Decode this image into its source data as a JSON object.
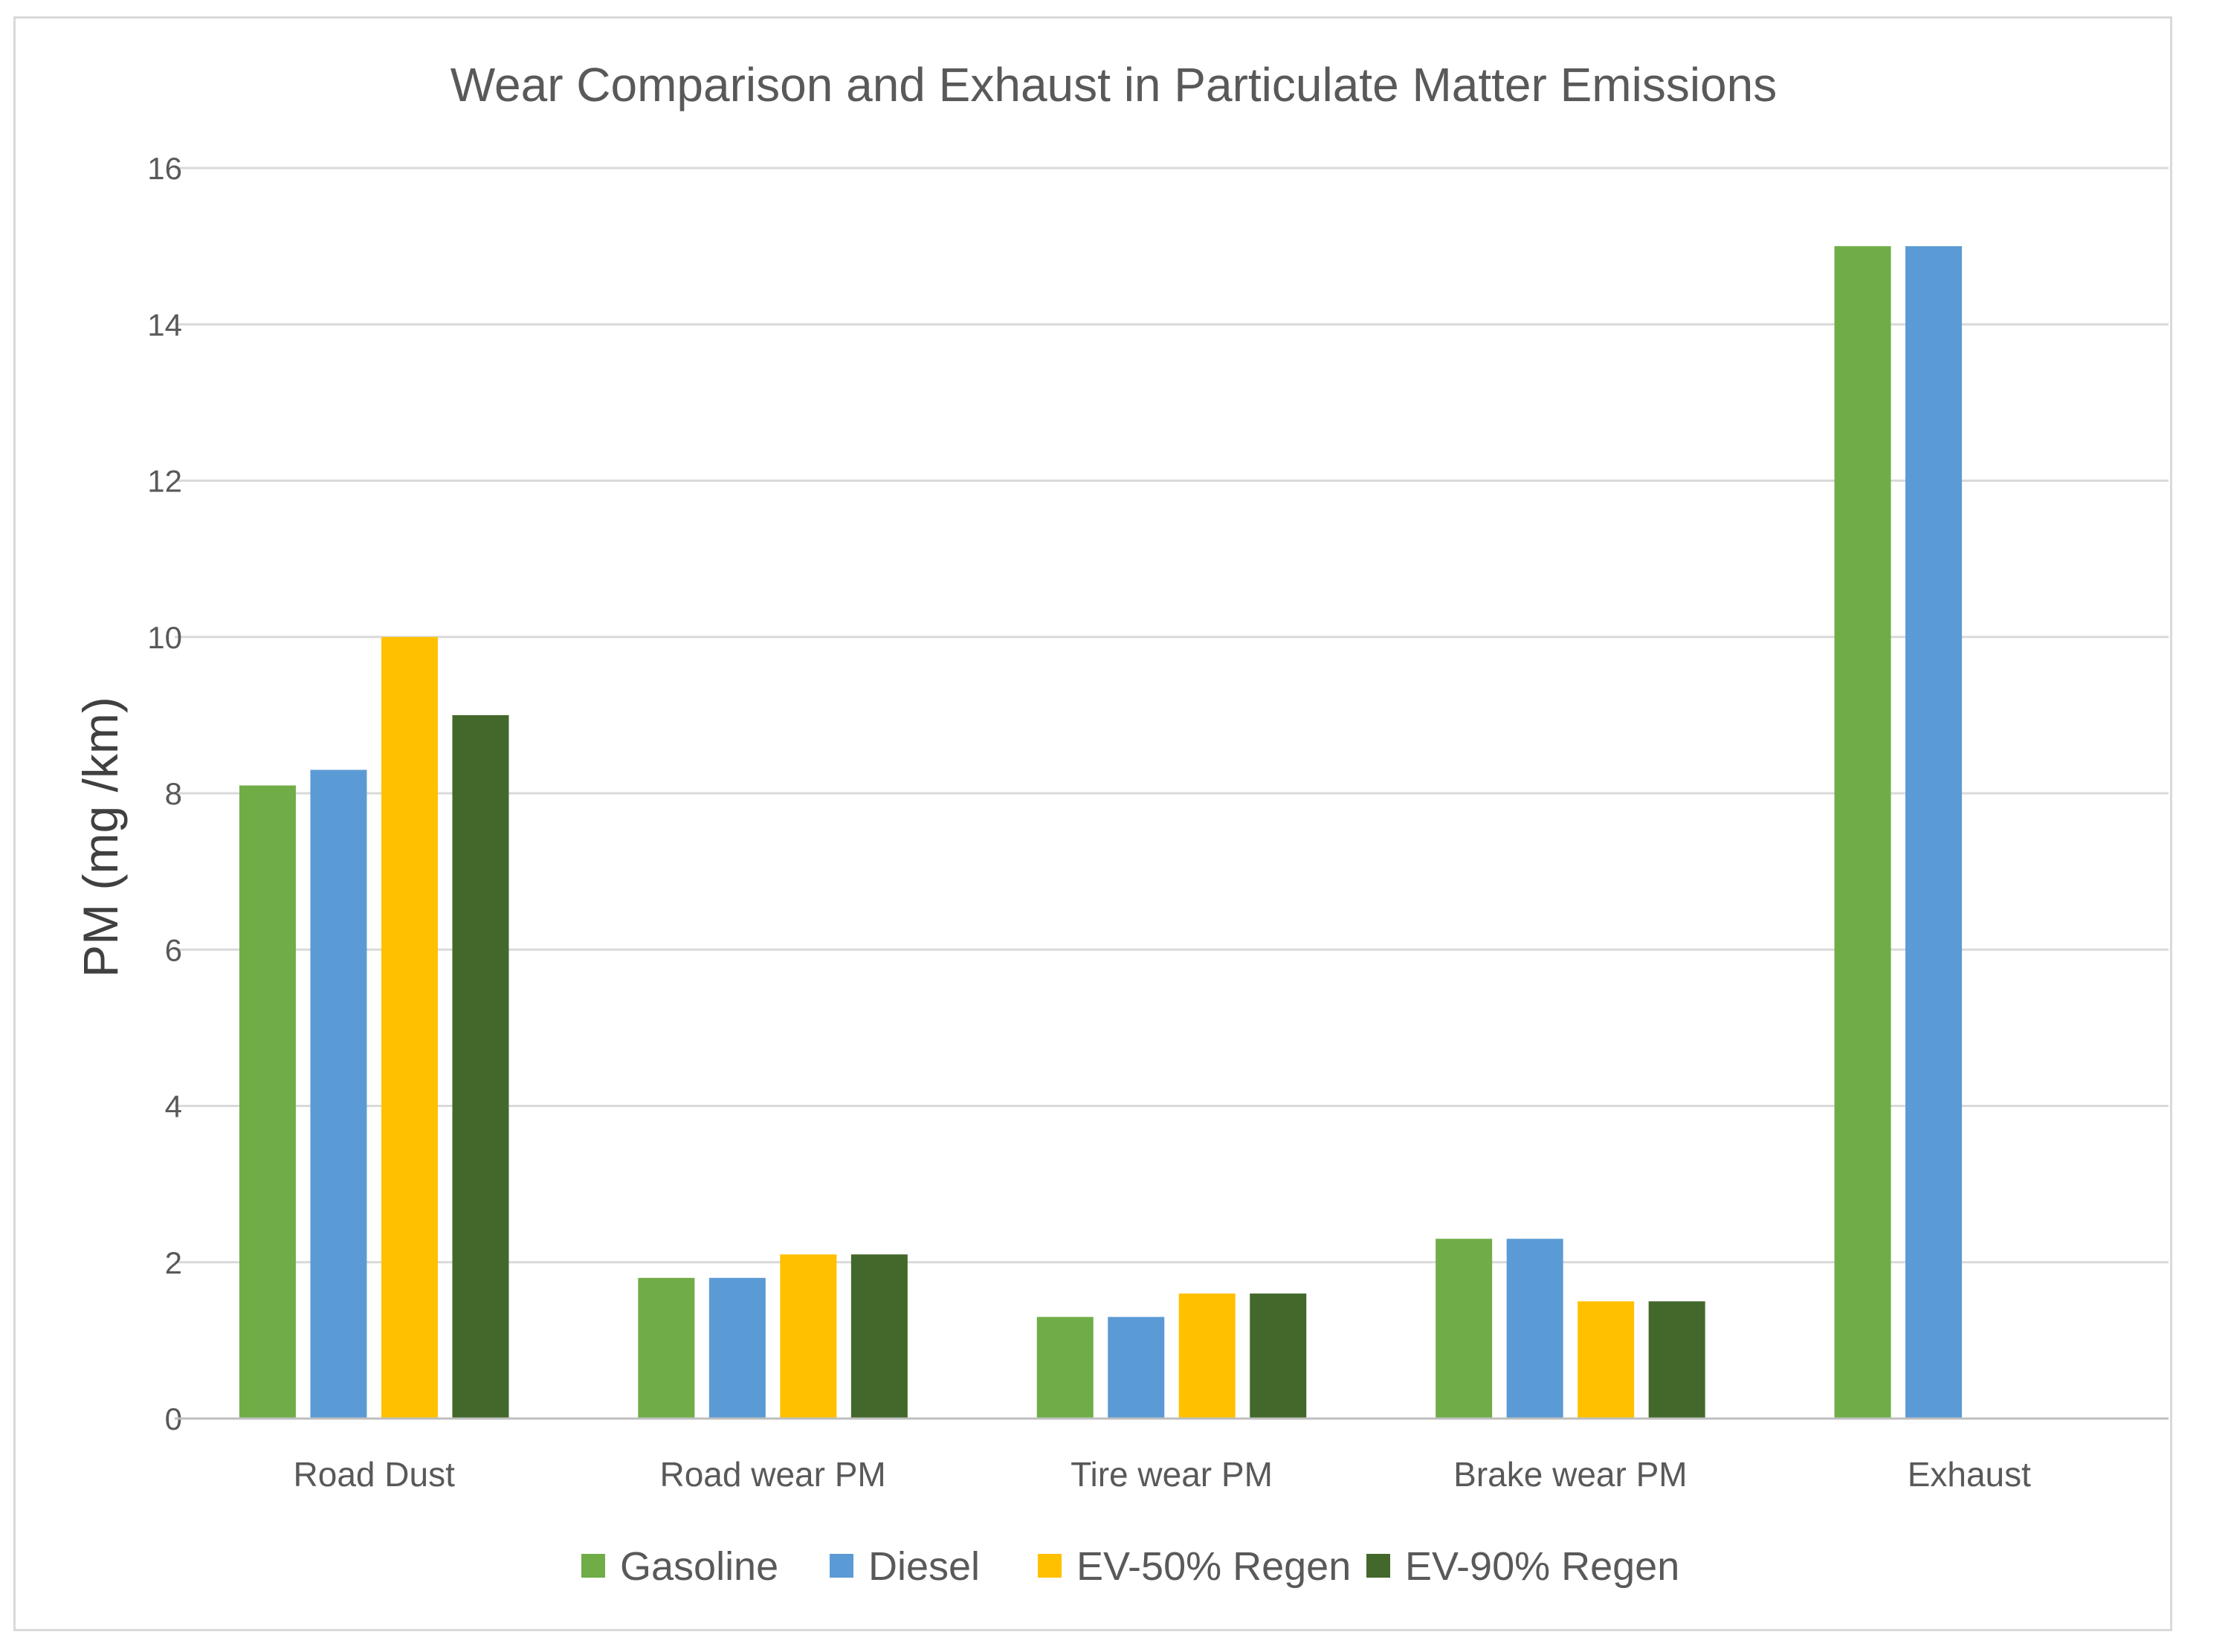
{
  "chart_data": {
    "type": "bar",
    "title": "Wear Comparison and Exhaust  in Particulate Matter Emissions",
    "xlabel": "",
    "ylabel": "PM (mg /km)",
    "ylim": [
      0,
      16
    ],
    "yticks": [
      0,
      2,
      4,
      6,
      8,
      10,
      12,
      14,
      16
    ],
    "grid": true,
    "legend_position": "bottom",
    "categories": [
      "Road Dust",
      "Road wear PM",
      "Tire wear PM",
      "Brake wear PM",
      "Exhaust"
    ],
    "series": [
      {
        "name": "Gasoline",
        "color": "#70ad47",
        "values": [
          8.1,
          1.8,
          1.3,
          2.3,
          15
        ]
      },
      {
        "name": "Diesel",
        "color": "#5b9bd5",
        "values": [
          8.3,
          1.8,
          1.3,
          2.3,
          15
        ]
      },
      {
        "name": "EV-50% Regen",
        "color": "#ffc000",
        "values": [
          10,
          2.1,
          1.6,
          1.5,
          0
        ]
      },
      {
        "name": "EV-90% Regen",
        "color": "#43682b",
        "values": [
          9,
          2.1,
          1.6,
          1.5,
          0
        ]
      }
    ]
  }
}
